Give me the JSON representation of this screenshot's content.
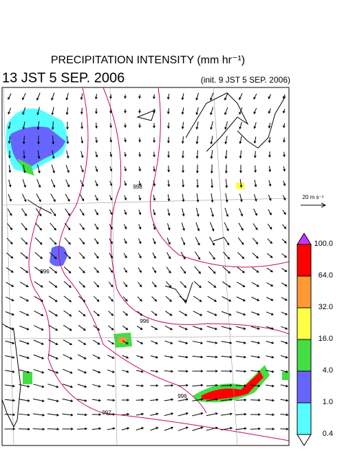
{
  "header": {
    "title": "PRECIPITATION INTENSITY (mm hr⁻¹)",
    "valid_time": "13 JST 5 SEP. 2006",
    "init_time": "(init. 9 JST 5 SEP. 2006)"
  },
  "wind_legend": {
    "label": "20 m s⁻¹"
  },
  "colorbar": {
    "levels": [
      {
        "label": "100.0",
        "color": "#ff0000"
      },
      {
        "label": "64.0",
        "color": "#ff9933"
      },
      {
        "label": "32.0",
        "color": "#ffff44"
      },
      {
        "label": "16.0",
        "color": "#44dd44"
      },
      {
        "label": "4.0",
        "color": "#6666ff"
      },
      {
        "label": "1.0",
        "color": "#55ffff"
      },
      {
        "label": "0.4",
        "color": "#ffffff"
      }
    ],
    "top_color": "#cc33ff"
  },
  "contour_labels": [
    "998",
    "996",
    "996",
    "996",
    "997"
  ]
}
